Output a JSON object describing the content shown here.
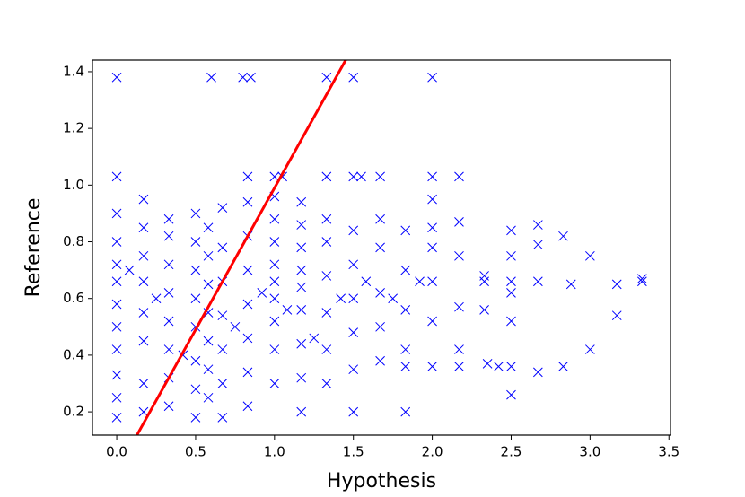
{
  "chart_data": {
    "type": "scatter",
    "x_label": "Hypothesis",
    "y_label": "Reference",
    "xlim": [
      -0.154,
      3.51
    ],
    "ylim": [
      0.118,
      1.441
    ],
    "xticks": [
      {
        "value": 0,
        "label": "0.0"
      },
      0.5,
      {
        "value": 1,
        "label": "1.0"
      },
      1.5,
      {
        "value": 2,
        "label": "2.0"
      },
      2.5,
      {
        "value": 3,
        "label": "3.0"
      },
      3.5
    ],
    "yticks": [
      0.2,
      0.4,
      0.6,
      0.8,
      {
        "value": 1,
        "label": "1.0"
      },
      1.2,
      1.4
    ],
    "color": "#0000ff",
    "marker": "x",
    "x": [
      0,
      0.6,
      0.8,
      0.85,
      1.33,
      1.5,
      2.0,
      0,
      0.83,
      1.0,
      1.05,
      1.33,
      1.5,
      1.55,
      1.67,
      2.0,
      2.17,
      2.33,
      2.33,
      2.35,
      2.33,
      2.5,
      2.5,
      2.5,
      2.5,
      2.5,
      2.5,
      2.5,
      2.42,
      2.67,
      2.67,
      2.67,
      2.67,
      2.83,
      2.83,
      2.88,
      3.0,
      3.0,
      3.17,
      3.17,
      3.33,
      3.33,
      2.17,
      2.17,
      2.17,
      2.17,
      2.17,
      2.0,
      2.0,
      2.0,
      2.0,
      2.0,
      2.0,
      1.83,
      1.83,
      1.83,
      1.83,
      1.83,
      1.83,
      1.67,
      1.67,
      1.67,
      1.67,
      1.67,
      0,
      0,
      0,
      0,
      0,
      0,
      0,
      0,
      0,
      0,
      0.17,
      0.17,
      0.17,
      0.17,
      0.17,
      0.17,
      0.17,
      0.17,
      0.33,
      0.33,
      0.33,
      0.33,
      0.33,
      0.33,
      0.33,
      0.33,
      0.5,
      0.5,
      0.5,
      0.5,
      0.5,
      0.5,
      0.5,
      0.5,
      0.58,
      0.58,
      0.58,
      0.58,
      0.58,
      0.58,
      0.58,
      0.67,
      0.67,
      0.67,
      0.67,
      0.67,
      0.67,
      0.67,
      0.83,
      0.83,
      0.83,
      0.83,
      0.83,
      0.83,
      0.83,
      1.0,
      1.0,
      1.0,
      1.0,
      1.0,
      1.0,
      1.0,
      1.0,
      1.0,
      1.17,
      1.17,
      1.17,
      1.17,
      1.17,
      1.17,
      1.17,
      1.17,
      1.17,
      1.33,
      1.33,
      1.33,
      1.33,
      1.33,
      1.33,
      1.5,
      1.5,
      1.5,
      1.5,
      1.5,
      1.5,
      0.25,
      0.42,
      0.08,
      0.75,
      0.92,
      1.08,
      1.25,
      1.42,
      1.58,
      1.75,
      1.92
    ],
    "values": [
      1.38,
      1.38,
      1.38,
      1.38,
      1.38,
      1.38,
      1.38,
      1.03,
      1.03,
      1.03,
      1.03,
      1.03,
      1.03,
      1.03,
      1.03,
      1.03,
      1.03,
      0.68,
      0.66,
      0.37,
      0.56,
      0.84,
      0.75,
      0.66,
      0.62,
      0.52,
      0.36,
      0.26,
      0.36,
      0.86,
      0.79,
      0.66,
      0.34,
      0.82,
      0.36,
      0.65,
      0.75,
      0.42,
      0.65,
      0.54,
      0.66,
      0.67,
      0.87,
      0.75,
      0.57,
      0.42,
      0.36,
      0.95,
      0.85,
      0.78,
      0.66,
      0.52,
      0.36,
      0.84,
      0.7,
      0.56,
      0.42,
      0.36,
      0.2,
      0.88,
      0.78,
      0.62,
      0.5,
      0.38,
      0.18,
      0.25,
      0.33,
      0.42,
      0.5,
      0.58,
      0.66,
      0.72,
      0.8,
      0.9,
      0.2,
      0.3,
      0.45,
      0.55,
      0.66,
      0.75,
      0.85,
      0.95,
      0.22,
      0.32,
      0.42,
      0.52,
      0.62,
      0.72,
      0.82,
      0.88,
      0.18,
      0.28,
      0.38,
      0.5,
      0.6,
      0.7,
      0.8,
      0.9,
      0.25,
      0.35,
      0.45,
      0.55,
      0.65,
      0.75,
      0.85,
      0.18,
      0.3,
      0.42,
      0.54,
      0.66,
      0.78,
      0.92,
      0.22,
      0.34,
      0.46,
      0.58,
      0.7,
      0.82,
      0.94,
      0.3,
      0.42,
      0.52,
      0.6,
      0.66,
      0.72,
      0.8,
      0.88,
      0.96,
      0.2,
      0.32,
      0.44,
      0.56,
      0.64,
      0.7,
      0.78,
      0.86,
      0.94,
      0.3,
      0.42,
      0.55,
      0.68,
      0.8,
      0.88,
      0.2,
      0.35,
      0.48,
      0.6,
      0.72,
      0.84,
      0.6,
      0.4,
      0.7,
      0.5,
      0.62,
      0.56,
      0.46,
      0.6,
      0.66,
      0.6,
      0.66
    ],
    "line": {
      "x": [
        0.1,
        1.5
      ],
      "values": [
        0.09,
        1.49
      ],
      "color": "#ff0000"
    }
  }
}
